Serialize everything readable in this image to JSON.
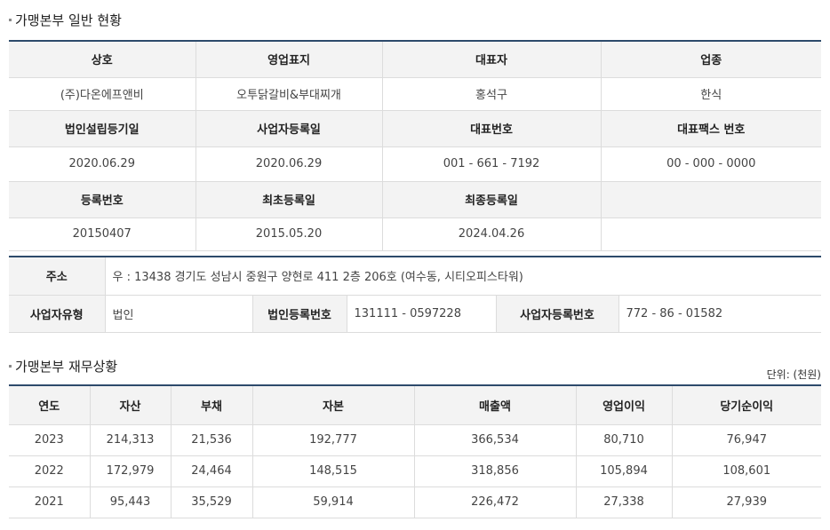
{
  "general": {
    "title": "가맹본부 일반 현황",
    "headers1": [
      "상호",
      "영업표지",
      "대표자",
      "업종"
    ],
    "values1": [
      "(주)다온에프앤비",
      "오투닭갈비&부대찌개",
      "홍석구",
      "한식"
    ],
    "headers2": [
      "법인설립등기일",
      "사업자등록일",
      "대표번호",
      "대표팩스 번호"
    ],
    "values2": [
      "2020.06.29",
      "2020.06.29",
      "001 - 661 - 7192",
      "00 - 000 - 0000"
    ],
    "headers3": [
      "등록번호",
      "최초등록일",
      "최종등록일",
      ""
    ],
    "values3": [
      "20150407",
      "2015.05.20",
      "2024.04.26",
      ""
    ]
  },
  "address": {
    "address_label": "주소",
    "address_value": "우 : 13438 경기도 성남시 중원구 양현로 411 2층 206호 (여수동, 시티오피스타워)",
    "biz_type_label": "사업자유형",
    "biz_type_value": "법인",
    "corp_reg_label": "법인등록번호",
    "corp_reg_value": "131111 - 0597228",
    "biz_reg_label": "사업자등록번호",
    "biz_reg_value": "772 - 86 - 01582"
  },
  "finance": {
    "title": "가맹본부 재무상황",
    "unit": "단위: (천원)",
    "headers": [
      "연도",
      "자산",
      "부채",
      "자본",
      "매출액",
      "영업이익",
      "당기순이익"
    ],
    "rows": [
      [
        "2023",
        "214,313",
        "21,536",
        "192,777",
        "366,534",
        "80,710",
        "76,947"
      ],
      [
        "2022",
        "172,979",
        "24,464",
        "148,515",
        "318,856",
        "105,894",
        "108,601"
      ],
      [
        "2021",
        "95,443",
        "35,529",
        "59,914",
        "226,472",
        "27,338",
        "27,939"
      ]
    ]
  }
}
